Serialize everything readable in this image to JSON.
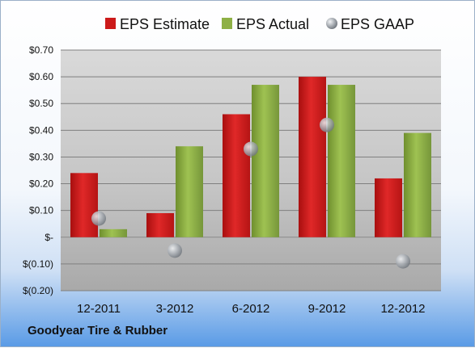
{
  "footer_label": "Goodyear Tire & Rubber",
  "chart_data": {
    "type": "bar",
    "categories": [
      "12-2011",
      "3-2012",
      "6-2012",
      "9-2012",
      "12-2012"
    ],
    "series": [
      {
        "name": "EPS Estimate",
        "values": [
          0.24,
          0.09,
          0.46,
          0.6,
          0.22
        ],
        "color": "#cc1a1a",
        "mark": "bar"
      },
      {
        "name": "EPS Actual",
        "values": [
          0.03,
          0.34,
          0.57,
          0.57,
          0.39
        ],
        "color": "#8eb045",
        "mark": "bar"
      },
      {
        "name": "EPS GAAP",
        "values": [
          0.07,
          -0.05,
          0.33,
          0.42,
          -0.09
        ],
        "color": "#9aa0a8",
        "mark": "bubble"
      }
    ],
    "y_ticks": [
      "$0.70",
      "$0.60",
      "$0.50",
      "$0.40",
      "$0.30",
      "$0.20",
      "$0.10",
      "$-",
      "$(0.10)",
      "$(0.20)"
    ],
    "y_tick_values": [
      0.7,
      0.6,
      0.5,
      0.4,
      0.3,
      0.2,
      0.1,
      0,
      -0.1,
      -0.2
    ],
    "ylim": [
      -0.2,
      0.7
    ],
    "grid": true,
    "legend_position": "top"
  }
}
